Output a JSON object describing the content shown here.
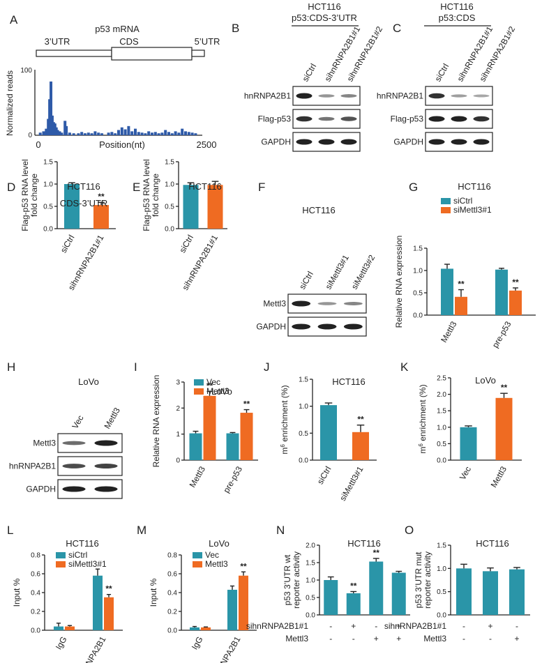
{
  "colors": {
    "teal": "#2a95a8",
    "orange": "#ef6b22",
    "blue": "#2e5aa8"
  },
  "figure": {
    "A": {
      "label": "A",
      "title": "p53 mRNA",
      "regions": [
        "3’UTR",
        "CDS",
        "5’UTR"
      ],
      "ylabel": "Normalized reads",
      "xlabel": "Position(nt)",
      "yticks": [
        "0",
        "100"
      ],
      "xticks": [
        "0",
        "2500"
      ]
    },
    "B": {
      "label": "B",
      "title1": "HCT116",
      "title2": "p53:CDS-3’UTR",
      "lanes": [
        "siCtrl",
        "sihnRNPA2B1#1",
        "sihnRNPA2B1#2"
      ],
      "rows": [
        "hnRNPA2B1",
        "Flag-p53",
        "GAPDH"
      ]
    },
    "C": {
      "label": "C",
      "title1": "HCT116",
      "title2": "p53:CDS",
      "lanes": [
        "siCtrl",
        "sihnRNPA2B1#1",
        "sihnRNPA2B1#2"
      ],
      "rows": [
        "hnRNPA2B1",
        "Flag-p53",
        "GAPDH"
      ]
    },
    "F": {
      "label": "F",
      "title": "HCT116",
      "lanes": [
        "siCtrl",
        "siMettl3#1",
        "siMettl3#2"
      ],
      "rows": [
        "Mettl3",
        "GAPDH"
      ]
    },
    "H": {
      "label": "H",
      "title": "LoVo",
      "lanes": [
        "Vec",
        "Mettl3"
      ],
      "rows": [
        "Mettl3",
        "hnRNPA2B1",
        "GAPDH"
      ]
    },
    "N": {
      "rowlabels": [
        "sihnRNPA2B1#1",
        "Mettl3"
      ],
      "signs": [
        [
          "-",
          "+",
          "-",
          "+"
        ],
        [
          "-",
          "-",
          "+",
          "+"
        ]
      ]
    },
    "O": {
      "rowlabels": [
        "sihnRNPA2B1#1",
        "Mettl3"
      ],
      "signs": [
        [
          "-",
          "+",
          "-"
        ],
        [
          "-",
          "-",
          "+"
        ]
      ]
    }
  },
  "chart_data": [
    {
      "id": "A",
      "type": "bar",
      "title": "p53 mRNA",
      "xlabel": "Position(nt)",
      "ylabel": "Normalized reads",
      "xlim": [
        0,
        2500
      ],
      "ylim": [
        0,
        100
      ],
      "x": [
        80,
        130,
        170,
        200,
        220,
        240,
        260,
        280,
        300,
        320,
        340,
        370,
        400,
        450,
        470,
        520,
        580,
        650,
        700,
        750,
        800,
        850,
        900,
        950,
        1000,
        1100,
        1150,
        1200,
        1250,
        1300,
        1350,
        1400,
        1450,
        1500,
        1550,
        1600,
        1650,
        1700,
        1750,
        1800,
        1850,
        1900,
        1950,
        2000,
        2050,
        2100,
        2150,
        2200,
        2250,
        2300,
        2350,
        2400
      ],
      "values": [
        4,
        6,
        10,
        25,
        55,
        82,
        30,
        20,
        18,
        12,
        8,
        6,
        4,
        22,
        14,
        4,
        3,
        3,
        5,
        3,
        4,
        3,
        6,
        4,
        3,
        4,
        5,
        3,
        8,
        12,
        9,
        14,
        6,
        10,
        5,
        4,
        3,
        6,
        4,
        5,
        3,
        4,
        8,
        5,
        3,
        6,
        4,
        10,
        6,
        5,
        4,
        3
      ]
    },
    {
      "id": "D",
      "type": "bar",
      "title": "HCT116",
      "subtitle": "CDS-3’UTR",
      "ylabel": "Flag-p53 RNA level fold change",
      "ylim": [
        0,
        1.5
      ],
      "yticks": [
        0.0,
        0.5,
        1.0,
        1.5
      ],
      "categories": [
        "siCtrl",
        "sihnRNPA2B1#1"
      ],
      "values": [
        1.0,
        0.53
      ],
      "errors": [
        0.03,
        0.06
      ],
      "colors": [
        "teal",
        "orange"
      ],
      "significance": [
        "",
        "**"
      ]
    },
    {
      "id": "E",
      "type": "bar",
      "title": "HCT116",
      "subtitle": "CDS",
      "ylabel": "Flag-p53 RNA level fold change",
      "ylim": [
        0,
        1.5
      ],
      "yticks": [
        0.0,
        0.5,
        1.0,
        1.5
      ],
      "categories": [
        "siCtrl",
        "sihnRNPA2B1#1"
      ],
      "values": [
        0.98,
        0.98
      ],
      "errors": [
        0.05,
        0.08
      ],
      "colors": [
        "teal",
        "orange"
      ],
      "significance": [
        "",
        ""
      ]
    },
    {
      "id": "G",
      "type": "bar",
      "title": "HCT116",
      "ylabel": "Relative RNA expression",
      "ylim": [
        0,
        1.5
      ],
      "yticks": [
        0.0,
        0.5,
        1.0,
        1.5
      ],
      "categories": [
        "Mettl3",
        "pre-p53"
      ],
      "series": [
        {
          "name": "siCtrl",
          "values": [
            1.04,
            1.02
          ],
          "errors": [
            0.1,
            0.03
          ],
          "color": "teal",
          "significance": [
            "",
            ""
          ]
        },
        {
          "name": "siMettl3#1",
          "values": [
            0.41,
            0.55
          ],
          "errors": [
            0.16,
            0.06
          ],
          "color": "orange",
          "significance": [
            "**",
            "**"
          ]
        }
      ]
    },
    {
      "id": "I",
      "type": "bar",
      "title": "LoVo",
      "ylabel": "Relative RNA expression",
      "ylim": [
        0,
        3
      ],
      "yticks": [
        0,
        1,
        2,
        3
      ],
      "categories": [
        "Mettl3",
        "pre-p53"
      ],
      "series": [
        {
          "name": "Vec",
          "values": [
            1.03,
            1.03
          ],
          "errors": [
            0.08,
            0.03
          ],
          "color": "teal",
          "significance": [
            "",
            ""
          ]
        },
        {
          "name": "Mettl3",
          "values": [
            2.47,
            1.82
          ],
          "errors": [
            0.17,
            0.12
          ],
          "color": "orange",
          "significance": [
            "**",
            "**"
          ]
        }
      ]
    },
    {
      "id": "J",
      "type": "bar",
      "title": "HCT116",
      "ylabel": "m6A enrichment (%)",
      "ylim": [
        0,
        1.5
      ],
      "yticks": [
        0.0,
        0.5,
        1.0,
        1.5
      ],
      "categories": [
        "siCtrl",
        "siMettl3#1"
      ],
      "values": [
        1.02,
        0.52
      ],
      "errors": [
        0.04,
        0.13
      ],
      "colors": [
        "teal",
        "orange"
      ],
      "significance": [
        "",
        "**"
      ]
    },
    {
      "id": "K",
      "type": "bar",
      "title": "LoVo",
      "ylabel": "m6A enrichment (%)",
      "ylim": [
        0,
        2.5
      ],
      "yticks": [
        0.0,
        0.5,
        1.0,
        1.5,
        2.0,
        2.5
      ],
      "categories": [
        "Vec",
        "Mettl3"
      ],
      "values": [
        1.0,
        1.89
      ],
      "errors": [
        0.04,
        0.14
      ],
      "colors": [
        "teal",
        "orange"
      ],
      "significance": [
        "",
        "**"
      ]
    },
    {
      "id": "L",
      "type": "bar",
      "title": "HCT116",
      "ylabel": "Input %",
      "ylim": [
        0,
        0.8
      ],
      "yticks": [
        0.0,
        0.2,
        0.4,
        0.6,
        0.8
      ],
      "categories": [
        "IgG",
        "hnRNPA2B1"
      ],
      "series": [
        {
          "name": "siCtrl",
          "values": [
            0.04,
            0.58
          ],
          "errors": [
            0.035,
            0.07
          ],
          "color": "teal",
          "significance": [
            "",
            ""
          ]
        },
        {
          "name": "siMettl3#1",
          "values": [
            0.04,
            0.35
          ],
          "errors": [
            0.01,
            0.03
          ],
          "color": "orange",
          "significance": [
            "",
            "**"
          ]
        }
      ]
    },
    {
      "id": "M",
      "type": "bar",
      "title": "LoVo",
      "ylabel": "Input %",
      "ylim": [
        0,
        0.8
      ],
      "yticks": [
        0.0,
        0.2,
        0.4,
        0.6,
        0.8
      ],
      "categories": [
        "IgG",
        "hnRNPA2B1"
      ],
      "series": [
        {
          "name": "Vec",
          "values": [
            0.03,
            0.43
          ],
          "errors": [
            0.01,
            0.04
          ],
          "color": "teal",
          "significance": [
            "",
            ""
          ]
        },
        {
          "name": "Mettl3",
          "values": [
            0.03,
            0.58
          ],
          "errors": [
            0.005,
            0.04
          ],
          "color": "orange",
          "significance": [
            "",
            "**"
          ]
        }
      ]
    },
    {
      "id": "N",
      "type": "bar",
      "title": "HCT116",
      "ylabel": "p53 3’UTR wt reporter activity",
      "ylim": [
        0,
        2.0
      ],
      "yticks": [
        0.0,
        0.5,
        1.0,
        1.5,
        2.0
      ],
      "categories": [
        "1",
        "2",
        "3",
        "4"
      ],
      "values": [
        1.0,
        0.62,
        1.53,
        1.21
      ],
      "errors": [
        0.09,
        0.05,
        0.09,
        0.04
      ],
      "colors": [
        "teal",
        "teal",
        "teal",
        "teal"
      ],
      "significance": [
        "",
        "**",
        "**",
        ""
      ]
    },
    {
      "id": "O",
      "type": "bar",
      "title": "HCT116",
      "ylabel": "p53 3’UTR mut reporter activity",
      "ylim": [
        0,
        1.5
      ],
      "yticks": [
        0.0,
        0.5,
        1.0,
        1.5
      ],
      "categories": [
        "1",
        "2",
        "3"
      ],
      "values": [
        1.0,
        0.94,
        0.98
      ],
      "errors": [
        0.09,
        0.07,
        0.04
      ],
      "colors": [
        "teal",
        "teal",
        "teal"
      ],
      "significance": [
        "",
        "",
        ""
      ]
    }
  ]
}
